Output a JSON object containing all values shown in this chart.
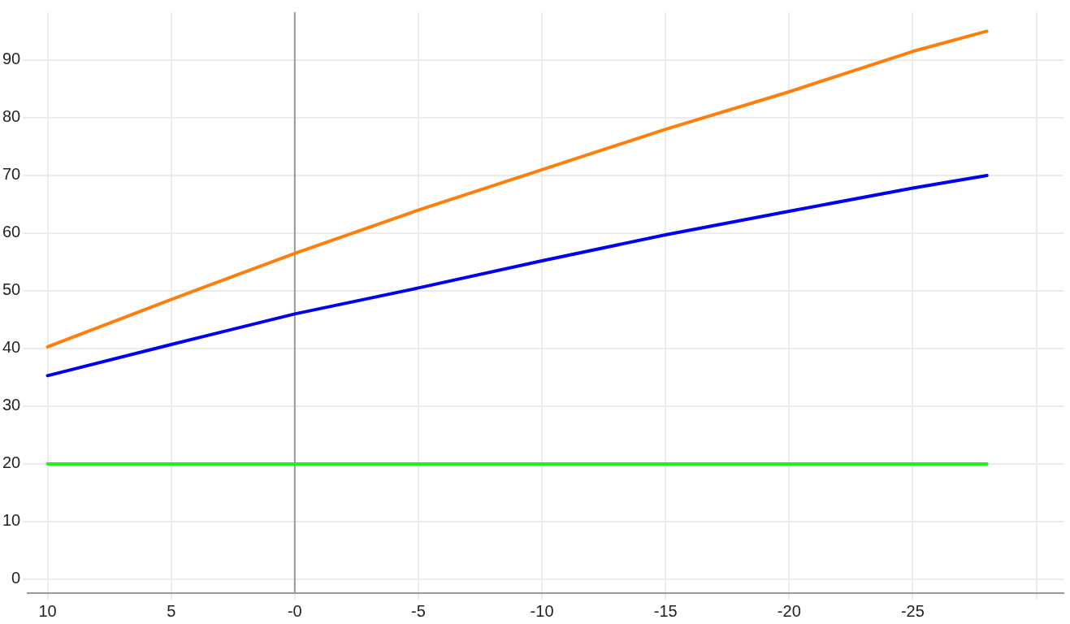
{
  "chart_data": {
    "type": "line",
    "x": [
      10,
      5,
      0,
      -5,
      -10,
      -15,
      -20,
      -25,
      -28
    ],
    "series": [
      {
        "color": "#ff7f0e",
        "values": [
          40.3,
          48.5,
          56.5,
          64,
          71,
          78,
          84.5,
          91.5,
          95
        ]
      },
      {
        "color": "#0000ee",
        "values": [
          35.3,
          40.7,
          46,
          50.5,
          55.2,
          59.7,
          63.8,
          67.8,
          70
        ]
      },
      {
        "color": "#22ee22",
        "values": [
          20,
          20,
          20,
          20,
          20,
          20,
          20,
          20,
          20
        ]
      }
    ],
    "xlim": [
      10.8,
      -31.1
    ],
    "xticks": [
      10,
      5,
      {
        "value": 0,
        "label": "-0"
      },
      -5,
      -10,
      -15,
      -20,
      -25,
      {
        "value": -30,
        "label": null
      }
    ],
    "ylim": [
      -2.4,
      98.3
    ],
    "yticks": [
      0,
      10,
      20,
      30,
      40,
      50,
      60,
      70,
      80,
      90
    ],
    "ref_lines": [
      {
        "axis": "x",
        "value": 0,
        "color": "#999999"
      }
    ],
    "grid": true,
    "legend": false,
    "marker": "none",
    "line_style": "solid"
  }
}
